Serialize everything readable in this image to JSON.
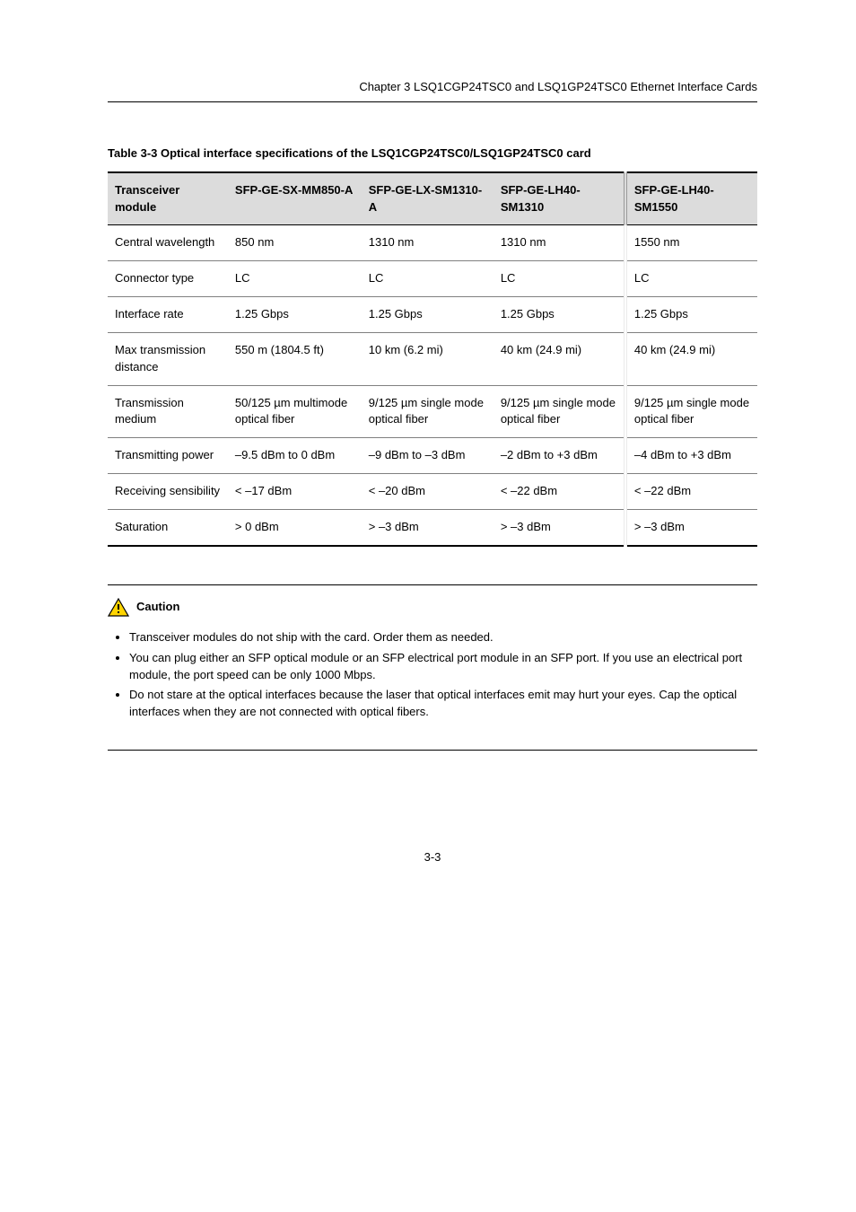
{
  "header": {
    "title": "Chapter 3 LSQ1CGP24TSC0 and LSQ1GP24TSC0 Ethernet Interface Cards"
  },
  "table": {
    "caption": "Table 3-3 Optical interface specifications of the LSQ1CGP24TSC0/LSQ1GP24TSC0 card",
    "columns": [
      "Transceiver module",
      "SFP-GE-SX-MM850-A",
      "SFP-GE-LX-SM1310-A",
      "SFP-GE-LH40-SM1310",
      "SFP-GE-LH40-SM1550"
    ],
    "rows": [
      {
        "label": "Central wavelength",
        "cells": [
          "850 nm",
          "1310 nm",
          "1310 nm",
          "1550 nm"
        ]
      },
      {
        "label": "Connector type",
        "cells": [
          "LC",
          "LC",
          "LC",
          "LC"
        ]
      },
      {
        "label": "Interface rate",
        "cells": [
          "1.25 Gbps",
          "1.25 Gbps",
          "1.25 Gbps",
          "1.25 Gbps"
        ]
      },
      {
        "label": "Max transmission distance",
        "cells": [
          "550 m (1804.5 ft)",
          "10 km (6.2 mi)",
          "40 km (24.9 mi)",
          "40 km (24.9 mi)"
        ]
      },
      {
        "label": "Transmission medium",
        "cells": [
          "50/125 µm multimode optical fiber",
          "9/125 µm single mode optical fiber",
          "9/125 µm single mode optical fiber",
          "9/125 µm single mode optical fiber"
        ]
      },
      {
        "label": "Transmitting power",
        "cells": [
          "–9.5 dBm to 0 dBm",
          "–9 dBm to –3 dBm",
          "–2 dBm to +3 dBm",
          "–4 dBm to +3 dBm"
        ]
      },
      {
        "label": "Receiving sensibility",
        "cells": [
          "< –17 dBm",
          "< –20 dBm",
          "< –22 dBm",
          "< –22 dBm"
        ]
      },
      {
        "label": "Saturation",
        "cells": [
          "> 0 dBm",
          "> –3 dBm",
          "> –3 dBm",
          "> –3 dBm"
        ]
      }
    ]
  },
  "caution": {
    "label": "Caution",
    "items": [
      "Transceiver modules do not ship with the card. Order them as needed.",
      "You can plug either an SFP optical module or an SFP electrical port module in an SFP port. If you use an electrical port module, the port speed can be only 1000 Mbps.",
      "Do not stare at the optical interfaces because the laser that optical interfaces emit may hurt your eyes. Cap the optical interfaces when they are not connected with optical fibers."
    ]
  },
  "footer": {
    "page_number": "3-3"
  },
  "styling": {
    "font_family": "Arial",
    "body_font_size_pt": 10,
    "background_color": "#ffffff",
    "text_color": "#000000",
    "table_header_bg": "#dcdcdc",
    "table_border_color": "#000000",
    "table_row_border_color": "#808080",
    "caution_icon_fill": "#ffd400",
    "caution_icon_stroke": "#000000"
  }
}
